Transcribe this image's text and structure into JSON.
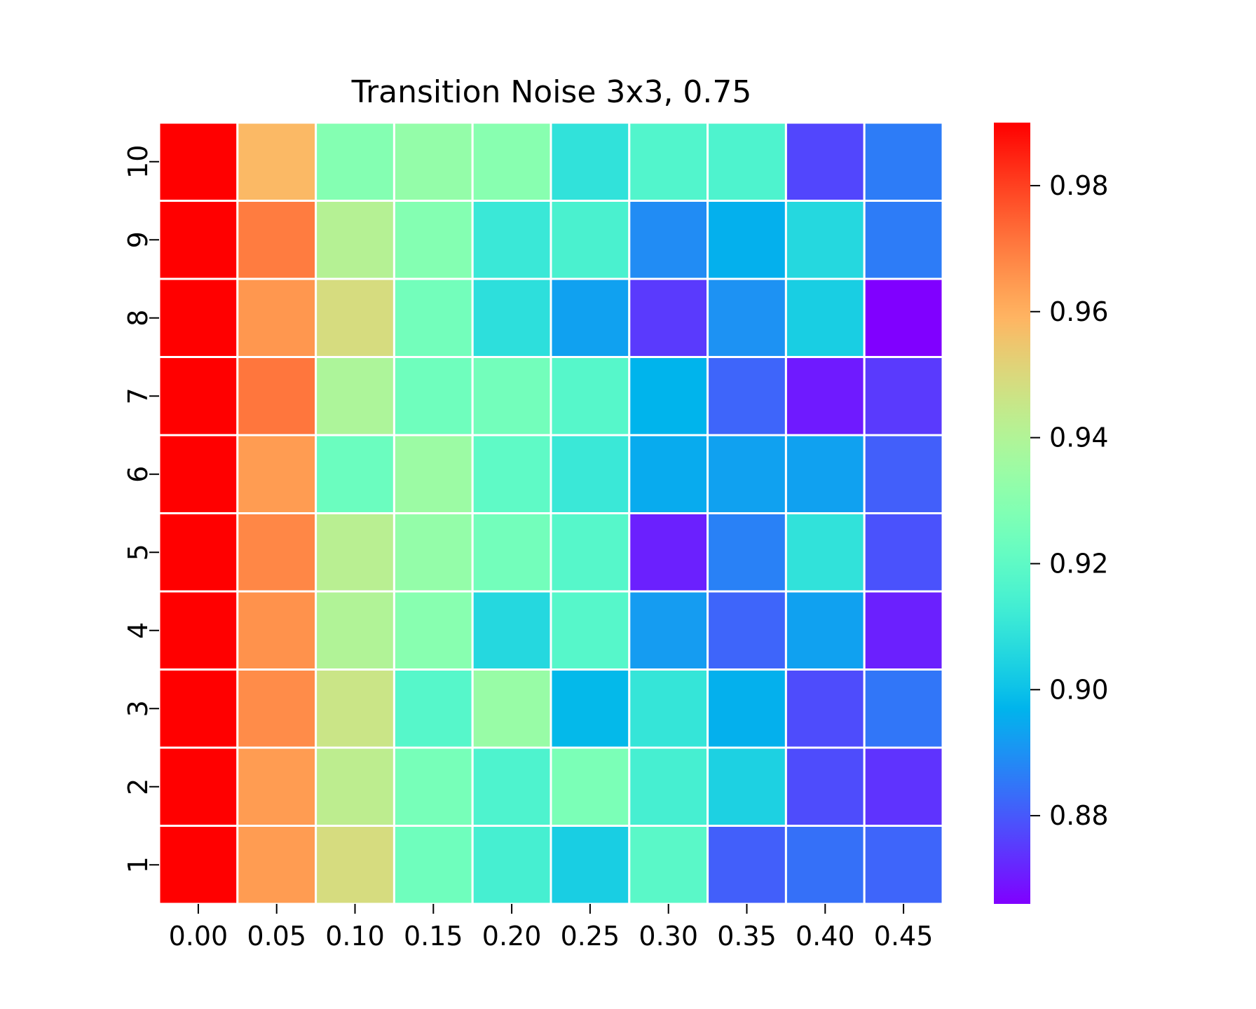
{
  "chart_data": {
    "type": "heatmap",
    "title": "Transition Noise 3x3, 0.75",
    "xlabel": "",
    "ylabel": "",
    "x_categories": [
      "0.00",
      "0.05",
      "0.10",
      "0.15",
      "0.20",
      "0.25",
      "0.30",
      "0.35",
      "0.40",
      "0.45"
    ],
    "y_categories": [
      "10",
      "9",
      "8",
      "7",
      "6",
      "5",
      "4",
      "3",
      "2",
      "1"
    ],
    "values": [
      [
        0.99,
        0.958,
        0.929,
        0.933,
        0.93,
        0.909,
        0.917,
        0.916,
        0.877,
        0.886
      ],
      [
        0.99,
        0.97,
        0.941,
        0.929,
        0.911,
        0.915,
        0.889,
        0.896,
        0.906,
        0.886
      ],
      [
        0.99,
        0.965,
        0.949,
        0.925,
        0.908,
        0.893,
        0.875,
        0.89,
        0.903,
        0.866
      ],
      [
        0.99,
        0.971,
        0.939,
        0.924,
        0.925,
        0.918,
        0.897,
        0.882,
        0.87,
        0.875
      ],
      [
        0.99,
        0.964,
        0.923,
        0.935,
        0.92,
        0.911,
        0.895,
        0.893,
        0.893,
        0.881
      ],
      [
        0.99,
        0.968,
        0.942,
        0.933,
        0.925,
        0.918,
        0.871,
        0.887,
        0.909,
        0.879
      ],
      [
        0.99,
        0.966,
        0.94,
        0.93,
        0.906,
        0.918,
        0.892,
        0.882,
        0.893,
        0.871
      ],
      [
        0.99,
        0.967,
        0.946,
        0.918,
        0.934,
        0.898,
        0.91,
        0.896,
        0.878,
        0.885
      ],
      [
        0.99,
        0.964,
        0.943,
        0.926,
        0.916,
        0.927,
        0.914,
        0.904,
        0.878,
        0.874
      ],
      [
        0.99,
        0.964,
        0.949,
        0.924,
        0.914,
        0.903,
        0.919,
        0.881,
        0.884,
        0.882
      ]
    ],
    "colorbar": {
      "colormap": "rainbow",
      "vmin": 0.866,
      "vmax": 0.99,
      "ticks": [
        "0.88",
        "0.90",
        "0.92",
        "0.94",
        "0.96",
        "0.98"
      ],
      "tick_values": [
        0.88,
        0.9,
        0.92,
        0.94,
        0.96,
        0.98
      ]
    },
    "cell_border_color": "#ffffff",
    "grid": false
  }
}
